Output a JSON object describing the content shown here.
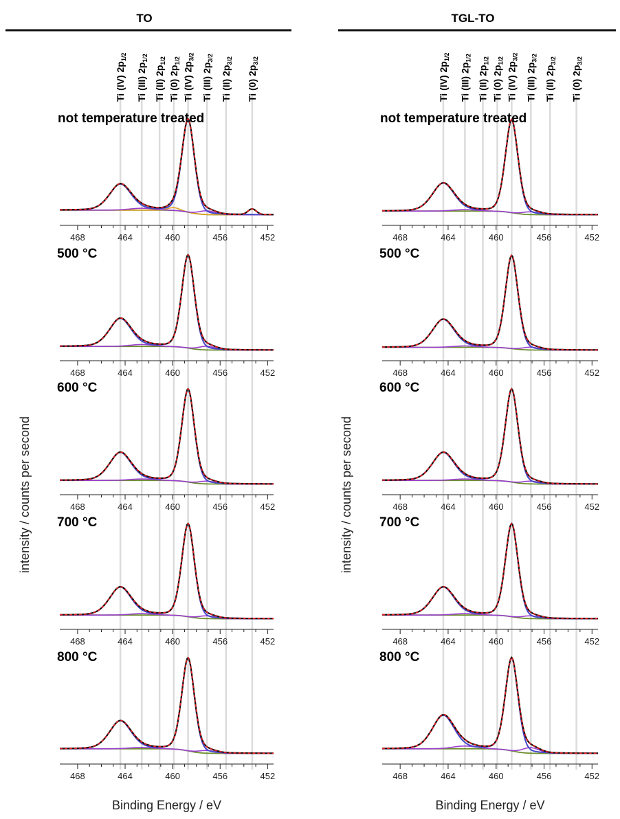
{
  "chart_data": {
    "type": "line",
    "x_unit": "eV",
    "xlabel": "Binding Energy / eV",
    "ylabel": "intensity / counts per second",
    "xlim": [
      469.5,
      451.5
    ],
    "xticks": [
      468,
      464,
      460,
      456,
      452
    ],
    "peak_labels": [
      {
        "name": "Ti (IV) 2p",
        "sub": "1/2",
        "x": 464.4
      },
      {
        "name": "Ti (III) 2p",
        "sub": "1/2",
        "x": 462.6
      },
      {
        "name": "Ti (II) 2p",
        "sub": "1/2",
        "x": 461.1
      },
      {
        "name": "Ti (0) 2p",
        "sub": "1/2",
        "x": 459.9
      },
      {
        "name": "Ti (IV) 2p",
        "sub": "3/2",
        "x": 458.7
      },
      {
        "name": "Ti (III) 2p",
        "sub": "3/2",
        "x": 457.1
      },
      {
        "name": "Ti (II) 2p",
        "sub": "3/2",
        "x": 455.5
      },
      {
        "name": "Ti (0) 2p",
        "sub": "3/2",
        "x": 453.3
      }
    ],
    "columns": [
      {
        "title": "TO",
        "panels": [
          {
            "label": "not temperature  treated",
            "ti4_p32": 1.0,
            "ti4_p12": 0.28,
            "ti3": 0.04,
            "ti0": 0.06,
            "bg_step": 0.05
          },
          {
            "label": "500 °C",
            "ti4_p32": 1.0,
            "ti4_p12": 0.3,
            "ti3": 0.04,
            "ti0": 0.0,
            "bg_step": 0.04
          },
          {
            "label": "600 °C",
            "ti4_p32": 1.0,
            "ti4_p12": 0.3,
            "ti3": 0.03,
            "ti0": 0.0,
            "bg_step": 0.04
          },
          {
            "label": "700 °C",
            "ti4_p32": 1.0,
            "ti4_p12": 0.3,
            "ti3": 0.03,
            "ti0": 0.0,
            "bg_step": 0.04
          },
          {
            "label": "800 °C",
            "ti4_p32": 1.0,
            "ti4_p12": 0.3,
            "ti3": 0.03,
            "ti0": 0.0,
            "bg_step": 0.05
          }
        ]
      },
      {
        "title": "TGL-TO",
        "panels": [
          {
            "label": "not temperature  treated",
            "ti4_p32": 1.0,
            "ti4_p12": 0.3,
            "ti3": 0.03,
            "ti0": 0.0,
            "bg_step": 0.04
          },
          {
            "label": "500 °C",
            "ti4_p32": 1.0,
            "ti4_p12": 0.3,
            "ti3": 0.03,
            "ti0": 0.0,
            "bg_step": 0.03
          },
          {
            "label": "600 °C",
            "ti4_p32": 1.0,
            "ti4_p12": 0.3,
            "ti3": 0.03,
            "ti0": 0.0,
            "bg_step": 0.04
          },
          {
            "label": "700 °C",
            "ti4_p32": 1.0,
            "ti4_p12": 0.3,
            "ti3": 0.03,
            "ti0": 0.0,
            "bg_step": 0.04
          },
          {
            "label": "800 °C",
            "ti4_p32": 1.0,
            "ti4_p12": 0.36,
            "ti3": 0.06,
            "ti0": 0.0,
            "bg_step": 0.05
          }
        ]
      }
    ],
    "series_colors": {
      "measured": "#e02020",
      "envelope": "#111111",
      "ti4": "#4848cc",
      "ti3": "#9a3fd0",
      "ti0": "#e0a020",
      "background": "#6e8f2e"
    },
    "grid": "vertical lines at peak positions"
  }
}
